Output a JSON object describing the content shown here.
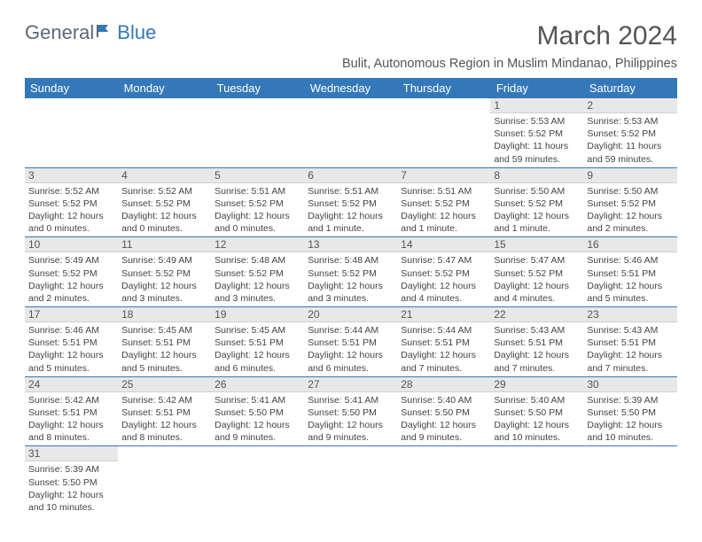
{
  "logo": {
    "part1": "General",
    "part2": "Blue"
  },
  "title": "March 2024",
  "location": "Bulit, Autonomous Region in Muslim Mindanao, Philippines",
  "colors": {
    "header_bg": "#3578b9",
    "header_text": "#ffffff",
    "daynum_bg": "#e8e8e8",
    "row_border": "#3578b9",
    "logo_gray": "#5a6a78",
    "logo_blue": "#3578b9",
    "text": "#444444"
  },
  "weekdays": [
    "Sunday",
    "Monday",
    "Tuesday",
    "Wednesday",
    "Thursday",
    "Friday",
    "Saturday"
  ],
  "weeks": [
    [
      null,
      null,
      null,
      null,
      null,
      {
        "n": "1",
        "sr": "5:53 AM",
        "ss": "5:52 PM",
        "dl": "11 hours and 59 minutes."
      },
      {
        "n": "2",
        "sr": "5:53 AM",
        "ss": "5:52 PM",
        "dl": "11 hours and 59 minutes."
      }
    ],
    [
      {
        "n": "3",
        "sr": "5:52 AM",
        "ss": "5:52 PM",
        "dl": "12 hours and 0 minutes."
      },
      {
        "n": "4",
        "sr": "5:52 AM",
        "ss": "5:52 PM",
        "dl": "12 hours and 0 minutes."
      },
      {
        "n": "5",
        "sr": "5:51 AM",
        "ss": "5:52 PM",
        "dl": "12 hours and 0 minutes."
      },
      {
        "n": "6",
        "sr": "5:51 AM",
        "ss": "5:52 PM",
        "dl": "12 hours and 1 minute."
      },
      {
        "n": "7",
        "sr": "5:51 AM",
        "ss": "5:52 PM",
        "dl": "12 hours and 1 minute."
      },
      {
        "n": "8",
        "sr": "5:50 AM",
        "ss": "5:52 PM",
        "dl": "12 hours and 1 minute."
      },
      {
        "n": "9",
        "sr": "5:50 AM",
        "ss": "5:52 PM",
        "dl": "12 hours and 2 minutes."
      }
    ],
    [
      {
        "n": "10",
        "sr": "5:49 AM",
        "ss": "5:52 PM",
        "dl": "12 hours and 2 minutes."
      },
      {
        "n": "11",
        "sr": "5:49 AM",
        "ss": "5:52 PM",
        "dl": "12 hours and 3 minutes."
      },
      {
        "n": "12",
        "sr": "5:48 AM",
        "ss": "5:52 PM",
        "dl": "12 hours and 3 minutes."
      },
      {
        "n": "13",
        "sr": "5:48 AM",
        "ss": "5:52 PM",
        "dl": "12 hours and 3 minutes."
      },
      {
        "n": "14",
        "sr": "5:47 AM",
        "ss": "5:52 PM",
        "dl": "12 hours and 4 minutes."
      },
      {
        "n": "15",
        "sr": "5:47 AM",
        "ss": "5:52 PM",
        "dl": "12 hours and 4 minutes."
      },
      {
        "n": "16",
        "sr": "5:46 AM",
        "ss": "5:51 PM",
        "dl": "12 hours and 5 minutes."
      }
    ],
    [
      {
        "n": "17",
        "sr": "5:46 AM",
        "ss": "5:51 PM",
        "dl": "12 hours and 5 minutes."
      },
      {
        "n": "18",
        "sr": "5:45 AM",
        "ss": "5:51 PM",
        "dl": "12 hours and 5 minutes."
      },
      {
        "n": "19",
        "sr": "5:45 AM",
        "ss": "5:51 PM",
        "dl": "12 hours and 6 minutes."
      },
      {
        "n": "20",
        "sr": "5:44 AM",
        "ss": "5:51 PM",
        "dl": "12 hours and 6 minutes."
      },
      {
        "n": "21",
        "sr": "5:44 AM",
        "ss": "5:51 PM",
        "dl": "12 hours and 7 minutes."
      },
      {
        "n": "22",
        "sr": "5:43 AM",
        "ss": "5:51 PM",
        "dl": "12 hours and 7 minutes."
      },
      {
        "n": "23",
        "sr": "5:43 AM",
        "ss": "5:51 PM",
        "dl": "12 hours and 7 minutes."
      }
    ],
    [
      {
        "n": "24",
        "sr": "5:42 AM",
        "ss": "5:51 PM",
        "dl": "12 hours and 8 minutes."
      },
      {
        "n": "25",
        "sr": "5:42 AM",
        "ss": "5:51 PM",
        "dl": "12 hours and 8 minutes."
      },
      {
        "n": "26",
        "sr": "5:41 AM",
        "ss": "5:50 PM",
        "dl": "12 hours and 9 minutes."
      },
      {
        "n": "27",
        "sr": "5:41 AM",
        "ss": "5:50 PM",
        "dl": "12 hours and 9 minutes."
      },
      {
        "n": "28",
        "sr": "5:40 AM",
        "ss": "5:50 PM",
        "dl": "12 hours and 9 minutes."
      },
      {
        "n": "29",
        "sr": "5:40 AM",
        "ss": "5:50 PM",
        "dl": "12 hours and 10 minutes."
      },
      {
        "n": "30",
        "sr": "5:39 AM",
        "ss": "5:50 PM",
        "dl": "12 hours and 10 minutes."
      }
    ],
    [
      {
        "n": "31",
        "sr": "5:39 AM",
        "ss": "5:50 PM",
        "dl": "12 hours and 10 minutes."
      },
      null,
      null,
      null,
      null,
      null,
      null
    ]
  ],
  "labels": {
    "sunrise": "Sunrise:",
    "sunset": "Sunset:",
    "daylight": "Daylight:"
  }
}
